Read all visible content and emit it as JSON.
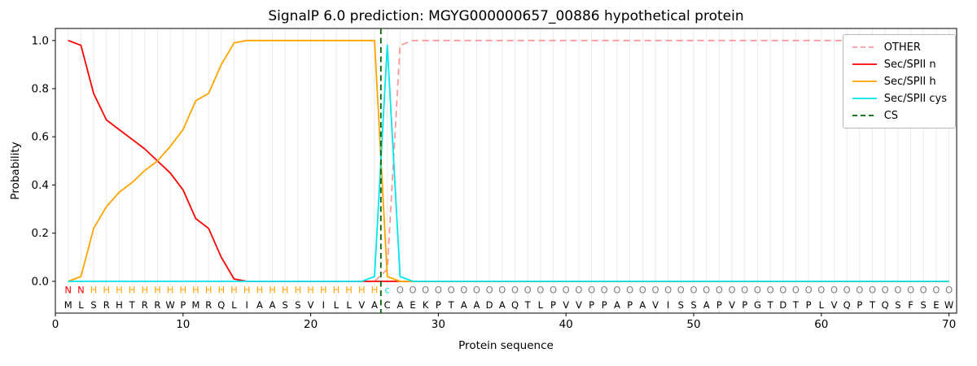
{
  "chart_data": {
    "type": "line",
    "title": "SignalP 6.0 prediction: MGYG000000657_00886 hypothetical protein",
    "xlabel": "Protein sequence",
    "ylabel": "Probability",
    "xlim": [
      0,
      70.6
    ],
    "ylim": [
      -0.132,
      1.05
    ],
    "x_ticks": [
      0,
      10,
      20,
      30,
      40,
      50,
      60,
      70
    ],
    "y_ticks": [
      0.0,
      0.2,
      0.4,
      0.6,
      0.8,
      1.0
    ],
    "grid": "light vertical gridline at every residue position",
    "legend_position": "upper right",
    "x_positions": "residue index 1 through 70",
    "series": [
      {
        "name": "OTHER",
        "color": "#ff9999",
        "style": "dashed",
        "values": [
          0,
          0,
          0,
          0,
          0,
          0,
          0,
          0,
          0,
          0,
          0,
          0,
          0,
          0,
          0,
          0,
          0,
          0,
          0,
          0,
          0,
          0,
          0,
          0,
          0,
          0.05,
          0.98,
          1,
          1,
          1,
          1,
          1,
          1,
          1,
          1,
          1,
          1,
          1,
          1,
          1,
          1,
          1,
          1,
          1,
          1,
          1,
          1,
          1,
          1,
          1,
          1,
          1,
          1,
          1,
          1,
          1,
          1,
          1,
          1,
          1,
          1,
          1,
          1,
          1,
          1,
          1,
          1,
          1,
          1,
          1
        ]
      },
      {
        "name": "Sec/SPII n",
        "color": "#ff0000",
        "style": "solid",
        "values": [
          1.0,
          0.98,
          0.78,
          0.67,
          0.63,
          0.59,
          0.55,
          0.5,
          0.45,
          0.38,
          0.26,
          0.22,
          0.1,
          0.01,
          0,
          0,
          0,
          0,
          0,
          0,
          0,
          0,
          0,
          0,
          0,
          0,
          0,
          0,
          0,
          0,
          0,
          0,
          0,
          0,
          0,
          0,
          0,
          0,
          0,
          0,
          0,
          0,
          0,
          0,
          0,
          0,
          0,
          0,
          0,
          0,
          0,
          0,
          0,
          0,
          0,
          0,
          0,
          0,
          0,
          0,
          0,
          0,
          0,
          0,
          0,
          0,
          0,
          0,
          0,
          0
        ]
      },
      {
        "name": "Sec/SPII h",
        "color": "#ffa500",
        "style": "solid",
        "values": [
          0,
          0.02,
          0.22,
          0.31,
          0.37,
          0.41,
          0.46,
          0.5,
          0.56,
          0.63,
          0.75,
          0.78,
          0.9,
          0.99,
          1,
          1,
          1,
          1,
          1,
          1,
          1,
          1,
          1,
          1,
          1,
          0.02,
          0,
          0,
          0,
          0,
          0,
          0,
          0,
          0,
          0,
          0,
          0,
          0,
          0,
          0,
          0,
          0,
          0,
          0,
          0,
          0,
          0,
          0,
          0,
          0,
          0,
          0,
          0,
          0,
          0,
          0,
          0,
          0,
          0,
          0,
          0,
          0,
          0,
          0,
          0,
          0,
          0,
          0,
          0,
          0
        ]
      },
      {
        "name": "Sec/SPII cys",
        "color": "#00e5ee",
        "style": "solid",
        "values": [
          0,
          0,
          0,
          0,
          0,
          0,
          0,
          0,
          0,
          0,
          0,
          0,
          0,
          0,
          0,
          0,
          0,
          0,
          0,
          0,
          0,
          0,
          0,
          0,
          0.02,
          0.98,
          0.02,
          0,
          0,
          0,
          0,
          0,
          0,
          0,
          0,
          0,
          0,
          0,
          0,
          0,
          0,
          0,
          0,
          0,
          0,
          0,
          0,
          0,
          0,
          0,
          0,
          0,
          0,
          0,
          0,
          0,
          0,
          0,
          0,
          0,
          0,
          0,
          0,
          0,
          0,
          0,
          0,
          0,
          0,
          0
        ]
      }
    ],
    "cs_line": {
      "name": "CS",
      "x": 25.5,
      "color": "#006400",
      "style": "dashed"
    },
    "sequence": "MLSRHTRRWPMRQLIAASSVILLVACAEKPTAADAQTLPVVPPAPAVISSAPVPGTDTPLVQPTQSFSEW",
    "residue_labels": "NNHHHHHHHHHHHHHHHHHHHHHHHcOOOOOOOOOOOOOOOOOOOOOOOOOOOOOOOOOOOOOOOOOOOO",
    "label_colors": {
      "N": "#ff0000",
      "H": "#ffa500",
      "c": "#00e5ee",
      "O": "#7f7f7f"
    },
    "sequence_color": "#000000",
    "grid_color": "#e8e8e8",
    "axis_color": "#000000",
    "legend_labels": [
      "OTHER",
      "Sec/SPII n",
      "Sec/SPII h",
      "Sec/SPII cys",
      "CS"
    ]
  }
}
